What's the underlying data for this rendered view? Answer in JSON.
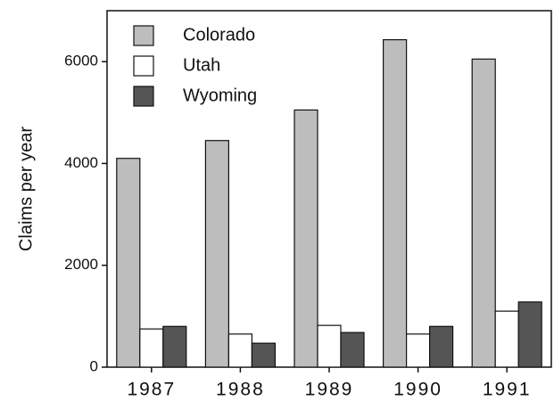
{
  "chart_data": {
    "type": "bar",
    "ylabel": "Claims per year",
    "categories": [
      "1987",
      "1988",
      "1989",
      "1990",
      "1991"
    ],
    "series": [
      {
        "name": "Colorado",
        "color": "#bdbdbd",
        "values": [
          4100,
          4450,
          5050,
          6430,
          6050
        ]
      },
      {
        "name": "Utah",
        "color": "#ffffff",
        "values": [
          750,
          650,
          820,
          650,
          1100
        ]
      },
      {
        "name": "Wyoming",
        "color": "#555555",
        "values": [
          800,
          470,
          680,
          800,
          1280
        ]
      }
    ],
    "ylim": [
      0,
      7000
    ],
    "yticks": [
      0,
      2000,
      4000,
      6000
    ],
    "legend": "upper left",
    "grid": false
  }
}
